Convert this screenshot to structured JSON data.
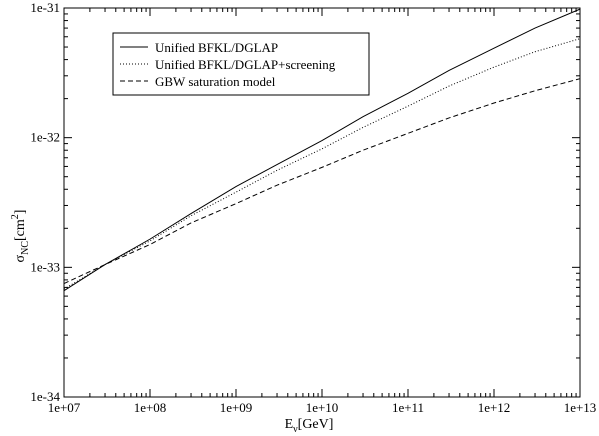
{
  "chart_data": {
    "type": "line",
    "title": "",
    "xlabel": {
      "main": "E",
      "sub": "ν",
      "rest": "[GeV]"
    },
    "ylabel": {
      "main": "σ",
      "sub": "NC",
      "rest": "[cm",
      "sup": "2",
      "end": "]"
    },
    "x_scale": "log",
    "y_scale": "log",
    "xlim": [
      10000000.0,
      10000000000000.0
    ],
    "ylim": [
      1e-34,
      1e-31
    ],
    "grid": false,
    "legend_position": "top-left",
    "x_ticks": [
      {
        "value": 10000000.0,
        "label": "1e+07"
      },
      {
        "value": 100000000.0,
        "label": "1e+08"
      },
      {
        "value": 1000000000.0,
        "label": "1e+09"
      },
      {
        "value": 10000000000.0,
        "label": "1e+10"
      },
      {
        "value": 100000000000.0,
        "label": "1e+11"
      },
      {
        "value": 1000000000000.0,
        "label": "1e+12"
      },
      {
        "value": 10000000000000.0,
        "label": "1e+13"
      }
    ],
    "y_ticks": [
      {
        "value": 1e-34,
        "label": "1e-34"
      },
      {
        "value": 1e-33,
        "label": "1e-33"
      },
      {
        "value": 1e-32,
        "label": "1e-32"
      },
      {
        "value": 1e-31,
        "label": "1e-31"
      }
    ],
    "series": [
      {
        "name": "Unified BFKL/DGLAP",
        "style": "solid",
        "x": [
          10000000.0,
          30000000.0,
          100000000.0,
          300000000.0,
          1000000000.0,
          3000000000.0,
          10000000000.0,
          30000000000.0,
          100000000000.0,
          300000000000.0,
          1000000000000.0,
          3000000000000.0,
          10000000000000.0
        ],
        "y": [
          6.6e-34,
          1.05e-33,
          1.65e-33,
          2.6e-33,
          4.2e-33,
          6.2e-33,
          9.5e-33,
          1.45e-32,
          2.2e-32,
          3.3e-32,
          4.9e-32,
          7e-32,
          9.8e-32
        ]
      },
      {
        "name": "Unified BFKL/DGLAP+screening",
        "style": "dotted",
        "x": [
          10000000.0,
          30000000.0,
          100000000.0,
          300000000.0,
          1000000000.0,
          3000000000.0,
          10000000000.0,
          30000000000.0,
          100000000000.0,
          300000000000.0,
          1000000000000.0,
          3000000000000.0,
          10000000000000.0
        ],
        "y": [
          6.8e-34,
          1.05e-33,
          1.6e-33,
          2.5e-33,
          3.8e-33,
          5.6e-33,
          8.2e-33,
          1.2e-32,
          1.75e-32,
          2.5e-32,
          3.5e-32,
          4.6e-32,
          5.8e-32
        ]
      },
      {
        "name": "GBW saturation model",
        "style": "dashed",
        "x": [
          10000000.0,
          30000000.0,
          100000000.0,
          300000000.0,
          1000000000.0,
          3000000000.0,
          10000000000.0,
          30000000000.0,
          100000000000.0,
          300000000000.0,
          1000000000000.0,
          3000000000000.0,
          10000000000000.0
        ],
        "y": [
          7.5e-34,
          1.05e-33,
          1.5e-33,
          2.2e-33,
          3.1e-33,
          4.3e-33,
          5.9e-33,
          8e-33,
          1.08e-32,
          1.42e-32,
          1.85e-32,
          2.3e-32,
          2.85e-32
        ]
      }
    ]
  }
}
